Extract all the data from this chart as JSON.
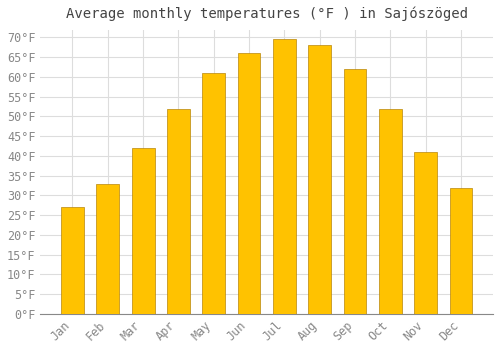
{
  "title": "Average monthly temperatures (°F ) in Sajószöged",
  "months": [
    "Jan",
    "Feb",
    "Mar",
    "Apr",
    "May",
    "Jun",
    "Jul",
    "Aug",
    "Sep",
    "Oct",
    "Nov",
    "Dec"
  ],
  "values": [
    27,
    33,
    42,
    52,
    61,
    66,
    69.5,
    68,
    62,
    52,
    41,
    32
  ],
  "bar_color": "#FFA500",
  "bar_edge_color": "#CC8800",
  "background_color": "#FFFFFF",
  "grid_color": "#DDDDDD",
  "tick_label_color": "#888888",
  "title_color": "#444444",
  "ylim": [
    0,
    72
  ],
  "ytick_values": [
    0,
    5,
    10,
    15,
    20,
    25,
    30,
    35,
    40,
    45,
    50,
    55,
    60,
    65,
    70
  ],
  "title_fontsize": 10,
  "tick_fontsize": 8.5
}
